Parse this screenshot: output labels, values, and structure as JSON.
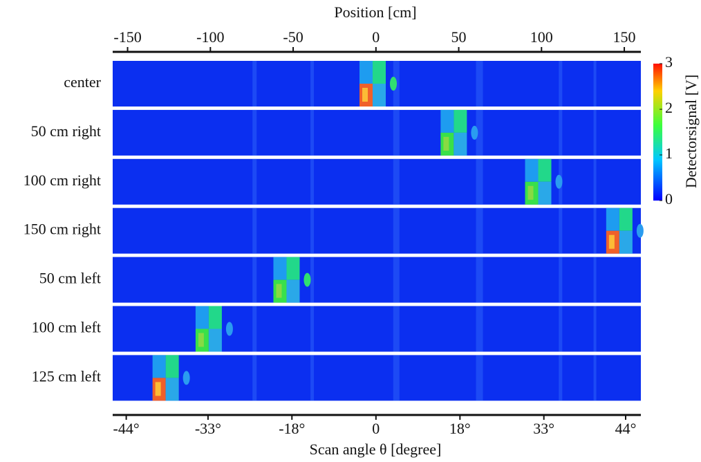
{
  "chart_data": {
    "type": "heatmap-scan",
    "xlabel": "Position [cm]",
    "xlim": [
      -159,
      160
    ],
    "xticks": [
      -150,
      -100,
      -50,
      0,
      50,
      100,
      150
    ],
    "x2label": "Scan angle θ [degree]",
    "x2ticks": [
      {
        "value": -44,
        "label": "-44°"
      },
      {
        "value": -33,
        "label": "-33°"
      },
      {
        "value": -18,
        "label": "-18°"
      },
      0,
      {
        "value": 18,
        "label": "18°"
      },
      {
        "value": 33,
        "label": "33°"
      },
      {
        "value": 44,
        "label": "44°"
      }
    ],
    "categories": [
      "center",
      "50 cm right",
      "100 cm right",
      "150 cm right",
      "50 cm left",
      "100 cm left",
      "125 cm left"
    ],
    "values": [
      -2,
      47,
      98,
      147,
      -54,
      -101,
      -127
    ],
    "colorbar_label": "Detectorsignal [V]",
    "zlim": [
      0,
      3
    ],
    "zticks": [
      0,
      1,
      2,
      3
    ],
    "background_color": "#0b2ff0"
  }
}
